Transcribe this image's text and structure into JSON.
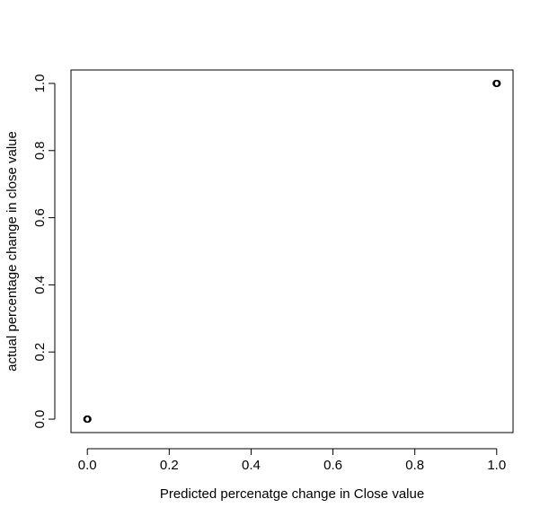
{
  "chart_data": {
    "type": "scatter",
    "title": "",
    "xlabel": "Predicted percenatge change in Close value",
    "ylabel": "actual percentage change in close value",
    "xlim": [
      -0.04,
      1.04
    ],
    "ylim": [
      -0.04,
      1.04
    ],
    "x_ticks": [
      0,
      0.2,
      0.4,
      0.6,
      0.8,
      1
    ],
    "x_tick_labels": [
      "0.0",
      "0.2",
      "0.4",
      "0.6",
      "0.8",
      "1.0"
    ],
    "y_ticks": [
      0,
      0.2,
      0.4,
      0.6,
      0.8,
      1
    ],
    "y_tick_labels": [
      "0.0",
      "0.2",
      "0.4",
      "0.6",
      "0.8",
      "1.0"
    ],
    "grid": false,
    "legend": "none",
    "marker": "open-circle",
    "marker_color": "#000000",
    "points": [
      {
        "x": 0,
        "y": 0
      },
      {
        "x": 0,
        "y": 0
      },
      {
        "x": 0,
        "y": 0
      },
      {
        "x": 1,
        "y": 1
      },
      {
        "x": 1,
        "y": 1
      },
      {
        "x": 1,
        "y": 1
      }
    ]
  }
}
